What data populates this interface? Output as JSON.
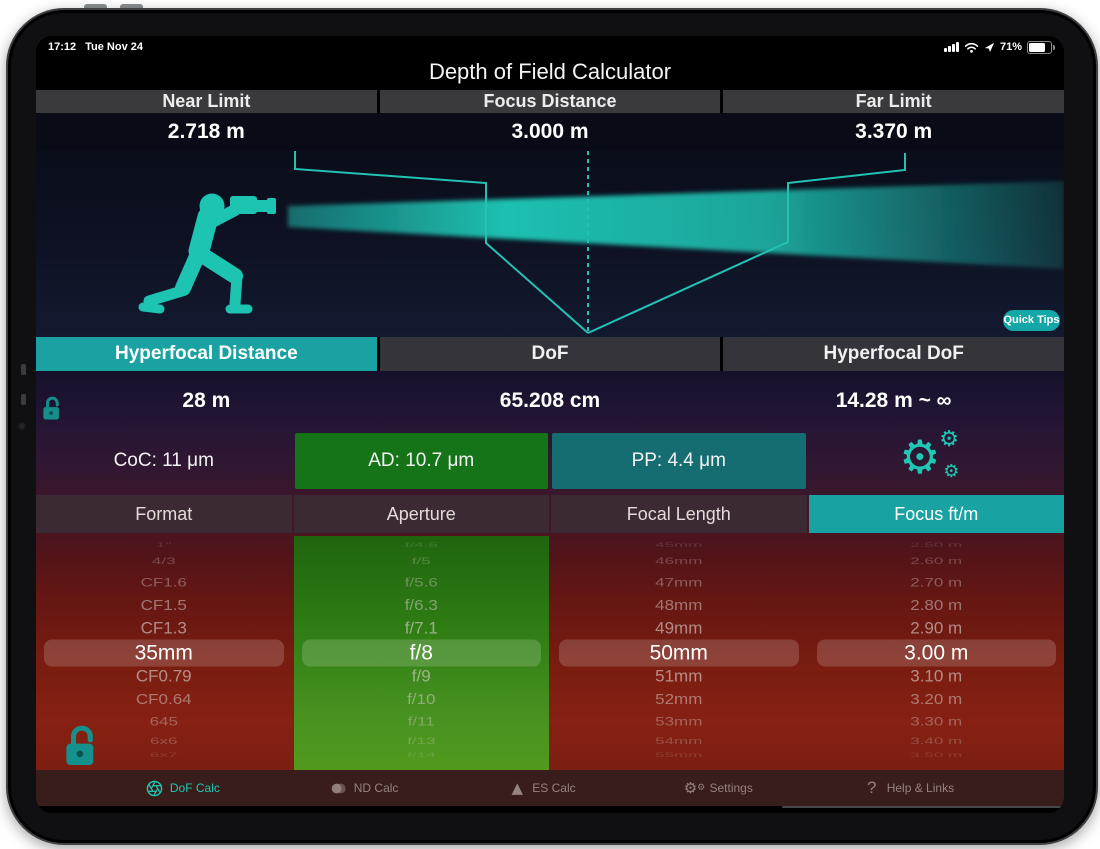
{
  "device": {
    "time": "17:12",
    "date": "Tue Nov 24",
    "battery_percent": "71%"
  },
  "app": {
    "title": "Depth of Field Calculator",
    "quick_tips": "Quick Tips"
  },
  "top_results": [
    {
      "label": "Near Limit",
      "value": "2.718 m"
    },
    {
      "label": "Focus Distance",
      "value": "3.000 m"
    },
    {
      "label": "Far Limit",
      "value": "3.370 m"
    }
  ],
  "mid_results": [
    {
      "label": "Hyperfocal Distance",
      "value": "28 m",
      "selected": true
    },
    {
      "label": "DoF",
      "value": "65.208 cm",
      "selected": false
    },
    {
      "label": "Hyperfocal DoF",
      "value": "14.28 m ~ ∞",
      "selected": false
    }
  ],
  "sensor_row": {
    "coc": "CoC: 11 μm",
    "ad": "AD: 10.7 μm",
    "pp": "PP: 4.4 μm"
  },
  "picker_headers": [
    {
      "label": "Format",
      "selected": false
    },
    {
      "label": "Aperture",
      "selected": false
    },
    {
      "label": "Focal Length",
      "selected": false
    },
    {
      "label": "Focus ft/m",
      "selected": true
    }
  ],
  "pickers": {
    "format": {
      "items": [
        "1\"",
        "4/3",
        "CF1.6",
        "CF1.5",
        "CF1.3",
        "35mm",
        "CF0.79",
        "CF0.64",
        "645",
        "6x6",
        "6x7"
      ],
      "selected_index": 5
    },
    "aperture": {
      "items": [
        "f/4.5",
        "f/5",
        "f/5.6",
        "f/6.3",
        "f/7.1",
        "f/8",
        "f/9",
        "f/10",
        "f/11",
        "f/13",
        "f/14"
      ],
      "selected_index": 5
    },
    "focal_length": {
      "items": [
        "45mm",
        "46mm",
        "47mm",
        "48mm",
        "49mm",
        "50mm",
        "51mm",
        "52mm",
        "53mm",
        "54mm",
        "55mm"
      ],
      "selected_index": 5
    },
    "focus_distance": {
      "items": [
        "2.50 m",
        "2.60 m",
        "2.70 m",
        "2.80 m",
        "2.90 m",
        "3.00 m",
        "3.10 m",
        "3.20 m",
        "3.30 m",
        "3.40 m",
        "3.50 m"
      ],
      "selected_index": 5
    }
  },
  "tab_bar": [
    {
      "label": "DoF Calc",
      "selected": true
    },
    {
      "label": "ND Calc",
      "selected": false
    },
    {
      "label": "ES Calc",
      "selected": false
    },
    {
      "label": "Settings",
      "selected": false
    },
    {
      "label": "Help & Links",
      "selected": false
    }
  ],
  "colors": {
    "accent_teal": "#1AA2A2",
    "beam_teal": "#1FC9B8",
    "ad_green_box": "#157417",
    "pp_teal_box": "#156D72",
    "picker_green": "#3E8A1C",
    "picker_red": "#7C1E11",
    "tabbar_bg": "#391D1B",
    "header_maroon": "#3B2A33",
    "header_gray": "#3A3A3C"
  }
}
